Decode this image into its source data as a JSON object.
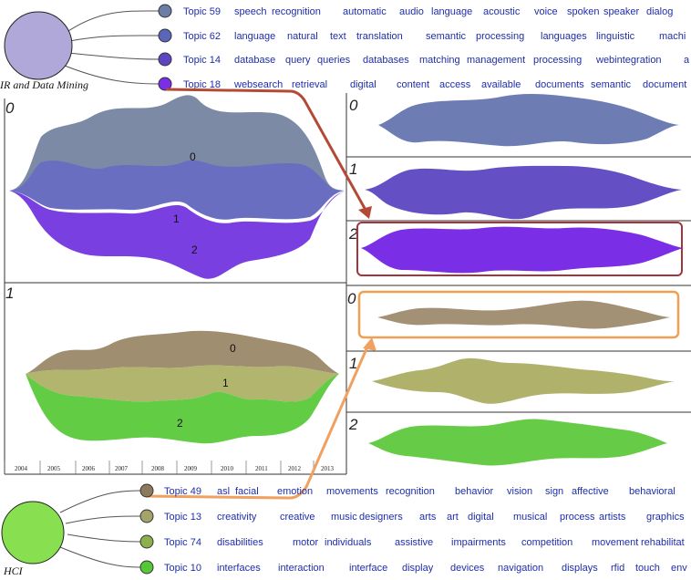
{
  "group_top": {
    "label": "IR and Data Mining",
    "topics": [
      {
        "id": "Topic 59",
        "words": [
          "speech",
          "recognition",
          "automatic",
          "audio",
          "language",
          "acoustic",
          "voice",
          "spoken",
          "speaker",
          "dialog"
        ],
        "color": "#6c7ea6"
      },
      {
        "id": "Topic 62",
        "words": [
          "language",
          "natural",
          "text",
          "translation",
          "semantic",
          "processing",
          "languages",
          "linguistic",
          "machi"
        ],
        "color": "#5a66b8"
      },
      {
        "id": "Topic 14",
        "words": [
          "database",
          "query",
          "queries",
          "databases",
          "matching",
          "management",
          "processing",
          "webintegration",
          "a"
        ],
        "color": "#5d45c4"
      },
      {
        "id": "Topic 18",
        "words": [
          "websearch",
          "retrieval",
          "digital",
          "content",
          "access",
          "available",
          "documents",
          "semantic",
          "document"
        ],
        "color": "#7a2ee8"
      }
    ]
  },
  "group_bottom": {
    "label": "HCI",
    "topics": [
      {
        "id": "Topic 49",
        "words": [
          "asl",
          "facial",
          "emotion",
          "movements",
          "recognition",
          "behavior",
          "vision",
          "sign",
          "affective",
          "behavioral"
        ],
        "color": "#8c7a5c"
      },
      {
        "id": "Topic 13",
        "words": [
          "creativity",
          "creative",
          "music",
          "designers",
          "arts",
          "art",
          "digital",
          "musical",
          "process",
          "artists",
          "graphics"
        ],
        "color": "#a3a36a"
      },
      {
        "id": "Topic 74",
        "words": [
          "disabilities",
          "motor",
          "individuals",
          "assistive",
          "impairments",
          "competition",
          "movement",
          "rehabilitat"
        ],
        "color": "#8db04f"
      },
      {
        "id": "Topic 10",
        "words": [
          "interfaces",
          "interaction",
          "interface",
          "display",
          "devices",
          "navigation",
          "displays",
          "rfid",
          "touch",
          "env"
        ],
        "color": "#55c83a"
      }
    ]
  },
  "panels": {
    "left_top_index": "0",
    "left_bottom_index": "1",
    "layer_labels_top": [
      "0",
      "1",
      "2"
    ],
    "layer_labels_bottom": [
      "0",
      "1",
      "2"
    ],
    "right_indices": [
      "0",
      "1",
      "2",
      "0",
      "1",
      "2"
    ]
  },
  "years": [
    "2004",
    "2005",
    "2006",
    "2007",
    "2008",
    "2009",
    "2010",
    "2011",
    "2012",
    "2013"
  ],
  "colors": {
    "top_layers": [
      "#7d8aa6",
      "#6a6ec0",
      "#7a3fe0"
    ],
    "bottom_layers": [
      "#a08e70",
      "#b2b56e",
      "#62cc45"
    ],
    "right_streams": [
      "#6e7cb4",
      "#6450c4",
      "#7a2fe6",
      "#a39176",
      "#b0b26c",
      "#66cc48"
    ],
    "highlight_red": "#a3353c",
    "highlight_orange": "#f0a050",
    "arrow_red": "#b44a36",
    "arrow_orange": "#f0a060",
    "node_top": "#b0a8d8",
    "node_bottom": "#88e050"
  }
}
